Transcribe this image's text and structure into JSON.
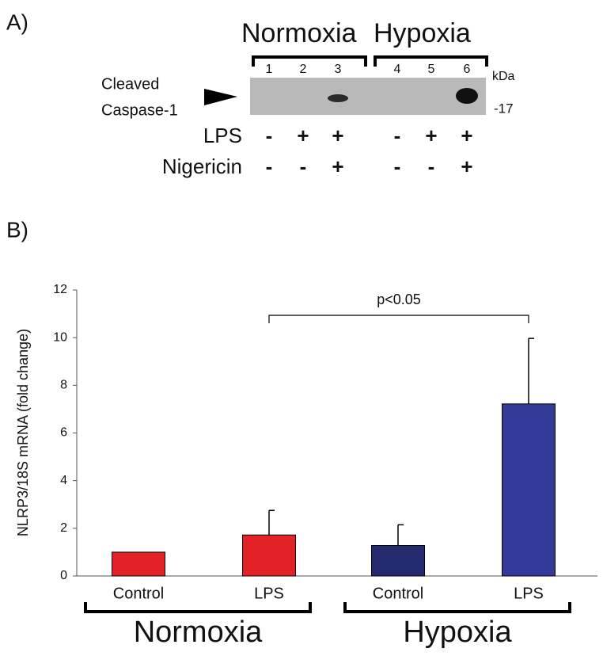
{
  "blot": {
    "panel_label": "A)",
    "conditions": [
      "Normoxia",
      "Hypoxia"
    ],
    "lanes": [
      "1",
      "2",
      "3",
      "4",
      "5",
      "6"
    ],
    "unit": "kDa",
    "band_label": [
      "Cleaved",
      "Caspase-1"
    ],
    "marker": "-17",
    "treatments": [
      {
        "name": "LPS",
        "signs": [
          "-",
          "+",
          "+",
          "-",
          "+",
          "+"
        ]
      },
      {
        "name": "Nigericin",
        "signs": [
          "-",
          "-",
          "+",
          "-",
          "-",
          "+"
        ]
      }
    ]
  },
  "chart_data": {
    "type": "bar",
    "panel_label": "B)",
    "y_label": "NLRP3/18S mRNA (fold change)",
    "categories": [
      "Control",
      "LPS",
      "Control",
      "LPS"
    ],
    "values": [
      1.0,
      1.72,
      1.28,
      7.22
    ],
    "errors": [
      null,
      1.03,
      0.87,
      2.75
    ],
    "colors": [
      "#e32227",
      "#e32227",
      "#232a6e",
      "#343a9a"
    ],
    "groups": [
      "Normoxia",
      "Hypoxia"
    ],
    "annotation": "p<0.05",
    "ylim": [
      0,
      12
    ],
    "yticks": [
      0,
      2,
      4,
      6,
      8,
      10,
      12
    ],
    "grid": false
  }
}
